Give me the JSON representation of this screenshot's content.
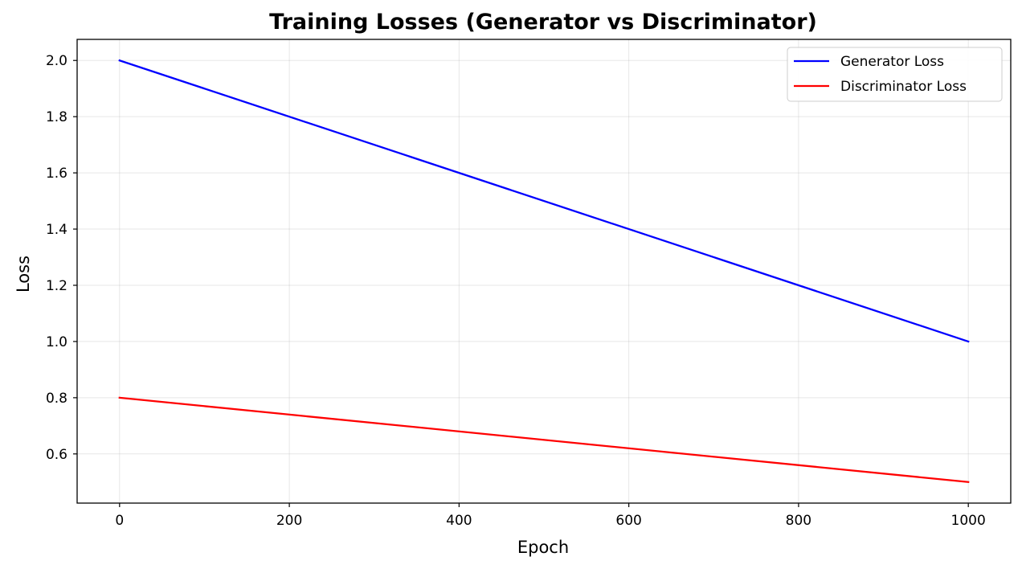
{
  "chart_data": {
    "type": "line",
    "title": "Training Losses (Generator vs Discriminator)",
    "xlabel": "Epoch",
    "ylabel": "Loss",
    "xlim": [
      -50,
      1050
    ],
    "ylim": [
      0.425,
      2.075
    ],
    "xticks": [
      0,
      200,
      400,
      600,
      800,
      1000
    ],
    "yticks": [
      0.6,
      0.8,
      1.0,
      1.2,
      1.4,
      1.6,
      1.8,
      2.0
    ],
    "xtick_labels": [
      "0",
      "200",
      "400",
      "600",
      "800",
      "1000"
    ],
    "ytick_labels": [
      "0.6",
      "0.8",
      "1.0",
      "1.2",
      "1.4",
      "1.6",
      "1.8",
      "2.0"
    ],
    "grid": true,
    "legend_position": "top-right",
    "series": [
      {
        "name": "Generator Loss",
        "color": "#0000ff",
        "x": [
          0,
          1000
        ],
        "y": [
          2.0,
          1.0
        ]
      },
      {
        "name": "Discriminator Loss",
        "color": "#ff0000",
        "x": [
          0,
          1000
        ],
        "y": [
          0.8,
          0.5
        ]
      }
    ]
  }
}
